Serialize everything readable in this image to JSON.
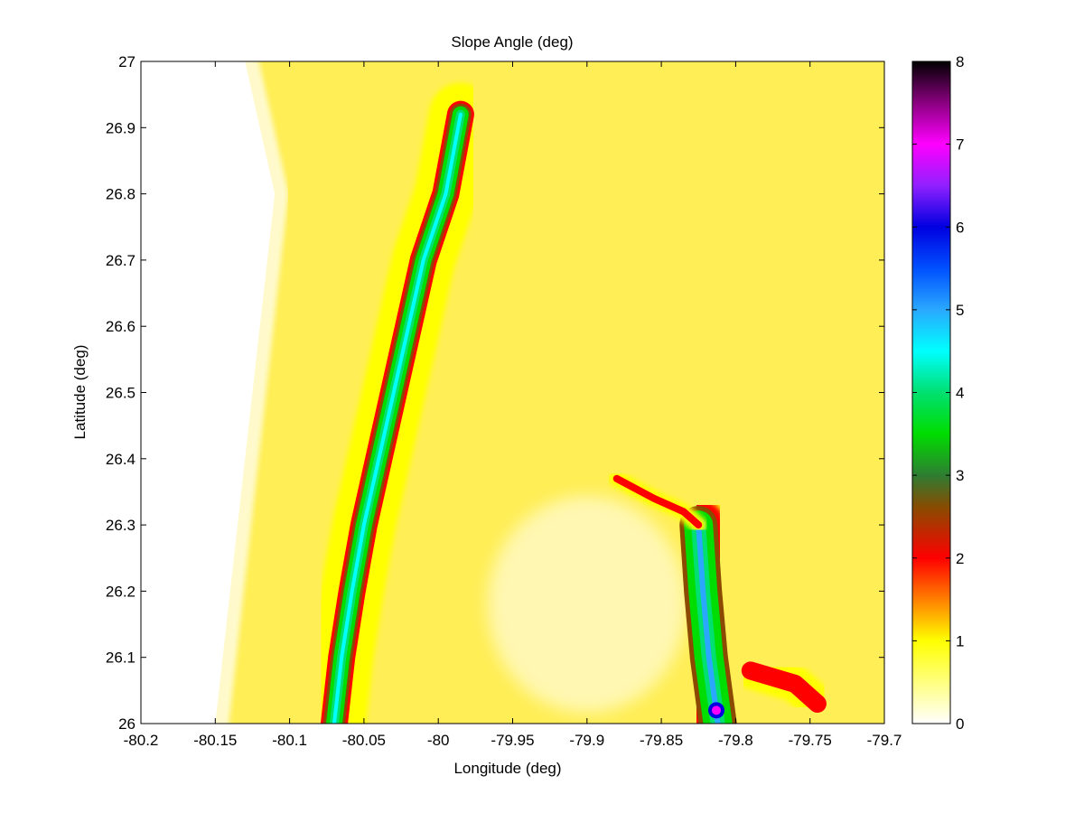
{
  "chart_data": {
    "type": "heatmap",
    "title": "Slope Angle (deg)",
    "xlabel": "Longitude (deg)",
    "ylabel": "Latitude (deg)",
    "xlim": [
      -80.2,
      -79.7
    ],
    "ylim": [
      26,
      27
    ],
    "xticks": [
      -80.2,
      -80.15,
      -80.1,
      -80.05,
      -80,
      -79.95,
      -79.9,
      -79.85,
      -79.8,
      -79.75,
      -79.7
    ],
    "xtick_labels": [
      "-80.2",
      "-80.15",
      "-80.1",
      "-80.05",
      "-80",
      "-79.95",
      "-79.9",
      "-79.85",
      "-79.8",
      "-79.75",
      "-79.7"
    ],
    "yticks": [
      26,
      26.1,
      26.2,
      26.3,
      26.4,
      26.5,
      26.6,
      26.7,
      26.8,
      26.9,
      27
    ],
    "ytick_labels": [
      "26",
      "26.1",
      "26.2",
      "26.3",
      "26.4",
      "26.5",
      "26.6",
      "26.7",
      "26.8",
      "26.9",
      "27"
    ],
    "colorbar": {
      "clim": [
        0,
        8
      ],
      "ticks": [
        0,
        1,
        2,
        3,
        4,
        5,
        6,
        7,
        8
      ],
      "tick_labels": [
        "0",
        "1",
        "2",
        "3",
        "4",
        "5",
        "6",
        "7",
        "8"
      ],
      "colormap_stops": [
        {
          "value": 0,
          "color": "#ffffff"
        },
        {
          "value": 1,
          "color": "#ffff00"
        },
        {
          "value": 2,
          "color": "#ff0000"
        },
        {
          "value": 2.6,
          "color": "#8b4a00"
        },
        {
          "value": 3,
          "color": "#2e7d32"
        },
        {
          "value": 3.5,
          "color": "#00dd00"
        },
        {
          "value": 4,
          "color": "#00e070"
        },
        {
          "value": 4.5,
          "color": "#00ffff"
        },
        {
          "value": 5,
          "color": "#2aa8ff"
        },
        {
          "value": 5.5,
          "color": "#0050ff"
        },
        {
          "value": 6,
          "color": "#0000e0"
        },
        {
          "value": 6.5,
          "color": "#9020ff"
        },
        {
          "value": 7,
          "color": "#ff00ff"
        },
        {
          "value": 7.5,
          "color": "#8a0080"
        },
        {
          "value": 8,
          "color": "#000000"
        }
      ]
    },
    "features": {
      "shallow_shelf_boundary": [
        [
          -80.13,
          27
        ],
        [
          -80.12,
          26.9
        ],
        [
          -80.11,
          26.8
        ],
        [
          -80.115,
          26.7
        ],
        [
          -80.12,
          26.6
        ],
        [
          -80.125,
          26.5
        ],
        [
          -80.13,
          26.4
        ],
        [
          -80.135,
          26.3
        ],
        [
          -80.14,
          26.2
        ],
        [
          -80.145,
          26.1
        ],
        [
          -80.15,
          26
        ]
      ],
      "main_escarpment_ridge": [
        [
          -79.985,
          26.92
        ],
        [
          -79.995,
          26.8
        ],
        [
          -80.01,
          26.7
        ],
        [
          -80.02,
          26.6
        ],
        [
          -80.03,
          26.5
        ],
        [
          -80.04,
          26.4
        ],
        [
          -80.05,
          26.3
        ],
        [
          -80.058,
          26.2
        ],
        [
          -80.065,
          26.1
        ],
        [
          -80.07,
          26.0
        ]
      ],
      "eastern_channel_ridge": [
        [
          -79.825,
          26.3
        ],
        [
          -79.822,
          26.2
        ],
        [
          -79.818,
          26.1
        ],
        [
          -79.812,
          26.0
        ]
      ],
      "eastern_channel_peak": {
        "x": -79.813,
        "y": 26.02,
        "value": 7.2
      },
      "main_ridge_peak_value": 5.0
    }
  }
}
